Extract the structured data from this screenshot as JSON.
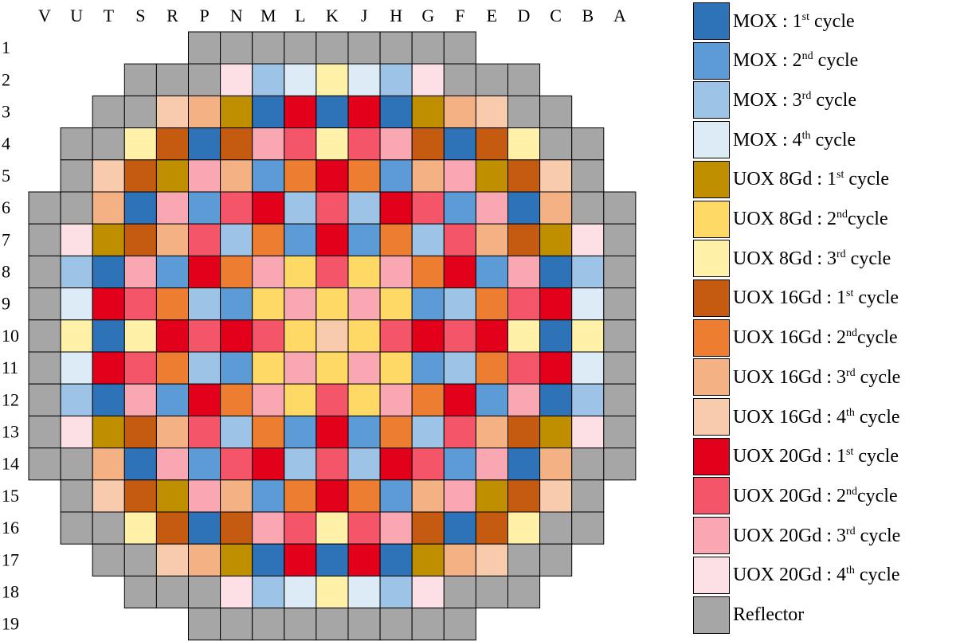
{
  "columns": [
    "V",
    "U",
    "T",
    "S",
    "R",
    "P",
    "N",
    "M",
    "L",
    "K",
    "J",
    "H",
    "G",
    "F",
    "E",
    "D",
    "C",
    "B",
    "A"
  ],
  "rows": [
    "1",
    "2",
    "3",
    "4",
    "5",
    "6",
    "7",
    "8",
    "9",
    "10",
    "11",
    "12",
    "13",
    "14",
    "15",
    "16",
    "17",
    "18",
    "19"
  ],
  "legend": [
    {
      "key": "mox1",
      "fuel": "MOX : 1",
      "sup": "st",
      "word": " cycle",
      "color": "#2e72b8"
    },
    {
      "key": "mox2",
      "fuel": "MOX : 2",
      "sup": "nd",
      "word": " cycle",
      "color": "#5c9bd6"
    },
    {
      "key": "mox3",
      "fuel": "MOX : 3",
      "sup": "rd",
      "word": " cycle",
      "color": "#9dc3e6"
    },
    {
      "key": "mox4",
      "fuel": "MOX : 4",
      "sup": "th",
      "word": " cycle",
      "color": "#ddebf7"
    },
    {
      "key": "u8_1",
      "fuel": "UOX 8Gd : 1",
      "sup": "st",
      "word": " cycle",
      "color": "#bf8f00"
    },
    {
      "key": "u8_2",
      "fuel": "UOX 8Gd : 2",
      "sup": "nd",
      "word": "cycle",
      "color": "#ffd966"
    },
    {
      "key": "u8_3",
      "fuel": "UOX 8Gd : 3",
      "sup": "rd",
      "word": " cycle",
      "color": "#fff2a8"
    },
    {
      "key": "u16_1",
      "fuel": "UOX 16Gd : 1",
      "sup": "st",
      "word": " cycle",
      "color": "#c55a11"
    },
    {
      "key": "u16_2",
      "fuel": "UOX 16Gd : 2",
      "sup": "nd",
      "word": "cycle",
      "color": "#ed7d31"
    },
    {
      "key": "u16_3",
      "fuel": "UOX 16Gd : 3",
      "sup": "rd",
      "word": " cycle",
      "color": "#f4b183"
    },
    {
      "key": "u16_4",
      "fuel": "UOX 16Gd : 4",
      "sup": "th",
      "word": " cycle",
      "color": "#f8cbad"
    },
    {
      "key": "u20_1",
      "fuel": "UOX 20Gd : 1",
      "sup": "st",
      "word": " cycle",
      "color": "#e3001b"
    },
    {
      "key": "u20_2",
      "fuel": "UOX 20Gd : 2",
      "sup": "nd",
      "word": "cycle",
      "color": "#f55568"
    },
    {
      "key": "u20_3",
      "fuel": "UOX 20Gd : 3",
      "sup": "rd",
      "word": " cycle",
      "color": "#faa7b4"
    },
    {
      "key": "u20_4",
      "fuel": "UOX 20Gd : 4",
      "sup": "th",
      "word": " cycle",
      "color": "#fde0e6"
    },
    {
      "key": "refl",
      "fuel": "Reflector",
      "sup": "",
      "word": "",
      "color": "#a6a6a6"
    }
  ],
  "core_map": [
    [
      "",
      "",
      "",
      "",
      "",
      "refl",
      "refl",
      "refl",
      "refl",
      "refl",
      "refl",
      "refl",
      "refl",
      "refl",
      "",
      "",
      "",
      "",
      ""
    ],
    [
      "",
      "",
      "",
      "refl",
      "refl",
      "refl",
      "u20_4",
      "mox3",
      "mox4",
      "u8_3",
      "mox4",
      "mox3",
      "u20_4",
      "refl",
      "refl",
      "refl",
      "",
      "",
      ""
    ],
    [
      "",
      "",
      "refl",
      "refl",
      "u16_4",
      "u16_3",
      "u8_1",
      "mox1",
      "u20_1",
      "mox1",
      "u20_1",
      "mox1",
      "u8_1",
      "u16_3",
      "u16_4",
      "refl",
      "refl",
      "",
      ""
    ],
    [
      "",
      "refl",
      "refl",
      "u8_3",
      "u16_1",
      "mox1",
      "u16_1",
      "u20_3",
      "u20_2",
      "u8_3",
      "u20_2",
      "u20_3",
      "u16_1",
      "mox1",
      "u16_1",
      "u8_3",
      "refl",
      "refl",
      ""
    ],
    [
      "",
      "refl",
      "u16_4",
      "u16_1",
      "u8_1",
      "u20_3",
      "u16_3",
      "mox2",
      "u16_2",
      "u20_1",
      "u16_2",
      "mox2",
      "u16_3",
      "u20_3",
      "u8_1",
      "u16_1",
      "u16_4",
      "refl",
      ""
    ],
    [
      "refl",
      "refl",
      "u16_3",
      "mox1",
      "u20_3",
      "mox2",
      "u20_2",
      "u20_1",
      "mox3",
      "u20_2",
      "mox3",
      "u20_1",
      "u20_2",
      "mox2",
      "u20_3",
      "mox1",
      "u16_3",
      "refl",
      "refl"
    ],
    [
      "refl",
      "u20_4",
      "u8_1",
      "u16_1",
      "u16_3",
      "u20_2",
      "mox3",
      "u16_2",
      "mox2",
      "u20_1",
      "mox2",
      "u16_2",
      "mox3",
      "u20_2",
      "u16_3",
      "u16_1",
      "u8_1",
      "u20_4",
      "refl"
    ],
    [
      "refl",
      "mox3",
      "mox1",
      "u20_3",
      "mox2",
      "u20_1",
      "u16_2",
      "u20_3",
      "u8_2",
      "u20_2",
      "u8_2",
      "u20_3",
      "u16_2",
      "u20_1",
      "mox2",
      "u20_3",
      "mox1",
      "mox3",
      "refl"
    ],
    [
      "refl",
      "mox4",
      "u20_1",
      "u20_2",
      "u16_2",
      "mox3",
      "mox2",
      "u8_2",
      "u20_3",
      "u8_2",
      "u20_3",
      "u8_2",
      "mox2",
      "mox3",
      "u16_2",
      "u20_2",
      "u20_1",
      "mox4",
      "refl"
    ],
    [
      "refl",
      "u8_3",
      "mox1",
      "u8_3",
      "u20_1",
      "u20_2",
      "u20_1",
      "u20_2",
      "u8_2",
      "u16_4",
      "u8_2",
      "u20_2",
      "u20_1",
      "u20_2",
      "u20_1",
      "u8_3",
      "mox1",
      "u8_3",
      "refl"
    ],
    [
      "refl",
      "mox4",
      "u20_1",
      "u20_2",
      "u16_2",
      "mox3",
      "mox2",
      "u8_2",
      "u20_3",
      "u8_2",
      "u20_3",
      "u8_2",
      "mox2",
      "mox3",
      "u16_2",
      "u20_2",
      "u20_1",
      "mox4",
      "refl"
    ],
    [
      "refl",
      "mox3",
      "mox1",
      "u20_3",
      "mox2",
      "u20_1",
      "u16_2",
      "u20_3",
      "u8_2",
      "u20_2",
      "u8_2",
      "u20_3",
      "u16_2",
      "u20_1",
      "mox2",
      "u20_3",
      "mox1",
      "mox3",
      "refl"
    ],
    [
      "refl",
      "u20_4",
      "u8_1",
      "u16_1",
      "u16_3",
      "u20_2",
      "mox3",
      "u16_2",
      "mox2",
      "u20_1",
      "mox2",
      "u16_2",
      "mox3",
      "u20_2",
      "u16_3",
      "u16_1",
      "u8_1",
      "u20_4",
      "refl"
    ],
    [
      "refl",
      "refl",
      "u16_3",
      "mox1",
      "u20_3",
      "mox2",
      "u20_2",
      "u20_1",
      "mox3",
      "u20_2",
      "mox3",
      "u20_1",
      "u20_2",
      "mox2",
      "u20_3",
      "mox1",
      "u16_3",
      "refl",
      "refl"
    ],
    [
      "",
      "refl",
      "u16_4",
      "u16_1",
      "u8_1",
      "u20_3",
      "u16_3",
      "mox2",
      "u16_2",
      "u20_1",
      "u16_2",
      "mox2",
      "u16_3",
      "u20_3",
      "u8_1",
      "u16_1",
      "u16_4",
      "refl",
      ""
    ],
    [
      "",
      "refl",
      "refl",
      "u8_3",
      "u16_1",
      "mox1",
      "u16_1",
      "u20_3",
      "u20_2",
      "u8_3",
      "u20_2",
      "u20_3",
      "u16_1",
      "mox1",
      "u16_1",
      "u8_3",
      "refl",
      "refl",
      ""
    ],
    [
      "",
      "",
      "refl",
      "refl",
      "u16_4",
      "u16_3",
      "u8_1",
      "mox1",
      "u20_1",
      "mox1",
      "u20_1",
      "mox1",
      "u8_1",
      "u16_3",
      "u16_4",
      "refl",
      "refl",
      "",
      ""
    ],
    [
      "",
      "",
      "",
      "refl",
      "refl",
      "refl",
      "u20_4",
      "mox3",
      "mox4",
      "u8_3",
      "mox4",
      "mox3",
      "u20_4",
      "refl",
      "refl",
      "refl",
      "",
      "",
      ""
    ],
    [
      "",
      "",
      "",
      "",
      "",
      "refl",
      "refl",
      "refl",
      "refl",
      "refl",
      "refl",
      "refl",
      "refl",
      "refl",
      "",
      "",
      "",
      "",
      ""
    ]
  ]
}
